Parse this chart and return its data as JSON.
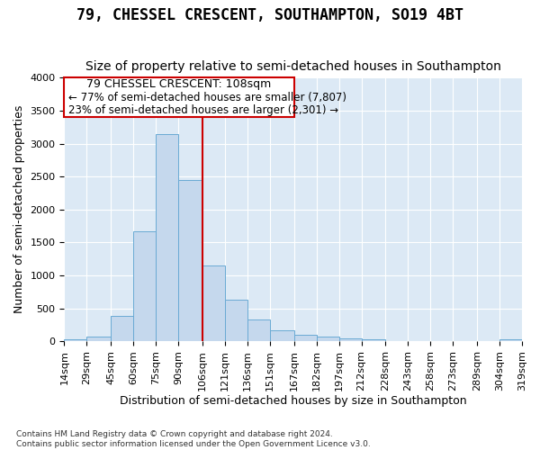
{
  "title": "79, CHESSEL CRESCENT, SOUTHAMPTON, SO19 4BT",
  "subtitle": "Size of property relative to semi-detached houses in Southampton",
  "xlabel": "Distribution of semi-detached houses by size in Southampton",
  "ylabel": "Number of semi-detached properties",
  "footer1": "Contains HM Land Registry data © Crown copyright and database right 2024.",
  "footer2": "Contains public sector information licensed under the Open Government Licence v3.0.",
  "property_label": "79 CHESSEL CRESCENT: 108sqm",
  "smaller_text": "← 77% of semi-detached houses are smaller (7,807)",
  "larger_text": "23% of semi-detached houses are larger (2,301) →",
  "bin_edges": [
    14,
    29,
    45,
    60,
    75,
    90,
    106,
    121,
    136,
    151,
    167,
    182,
    197,
    212,
    228,
    243,
    258,
    273,
    289,
    304,
    319
  ],
  "bin_labels": [
    "14sqm",
    "29sqm",
    "45sqm",
    "60sqm",
    "75sqm",
    "90sqm",
    "106sqm",
    "121sqm",
    "136sqm",
    "151sqm",
    "167sqm",
    "182sqm",
    "197sqm",
    "212sqm",
    "228sqm",
    "243sqm",
    "258sqm",
    "273sqm",
    "289sqm",
    "304sqm",
    "319sqm"
  ],
  "bar_heights": [
    30,
    70,
    380,
    1670,
    3150,
    2450,
    1150,
    630,
    330,
    165,
    100,
    65,
    45,
    25,
    5,
    5,
    5,
    5,
    5,
    35
  ],
  "bar_color": "#c5d8ed",
  "bar_edge_color": "#6aaad4",
  "vline_color": "#cc0000",
  "vline_x": 106,
  "box_edge_color": "#cc0000",
  "ylim_max": 4000,
  "yticks": [
    0,
    500,
    1000,
    1500,
    2000,
    2500,
    3000,
    3500,
    4000
  ],
  "plot_bg_color": "#dce9f5",
  "grid_color": "#ffffff",
  "fig_bg_color": "#ffffff",
  "title_fontsize": 12,
  "subtitle_fontsize": 10,
  "xlabel_fontsize": 9,
  "ylabel_fontsize": 9,
  "tick_fontsize": 8,
  "annot_title_fontsize": 9,
  "annot_text_fontsize": 8.5
}
